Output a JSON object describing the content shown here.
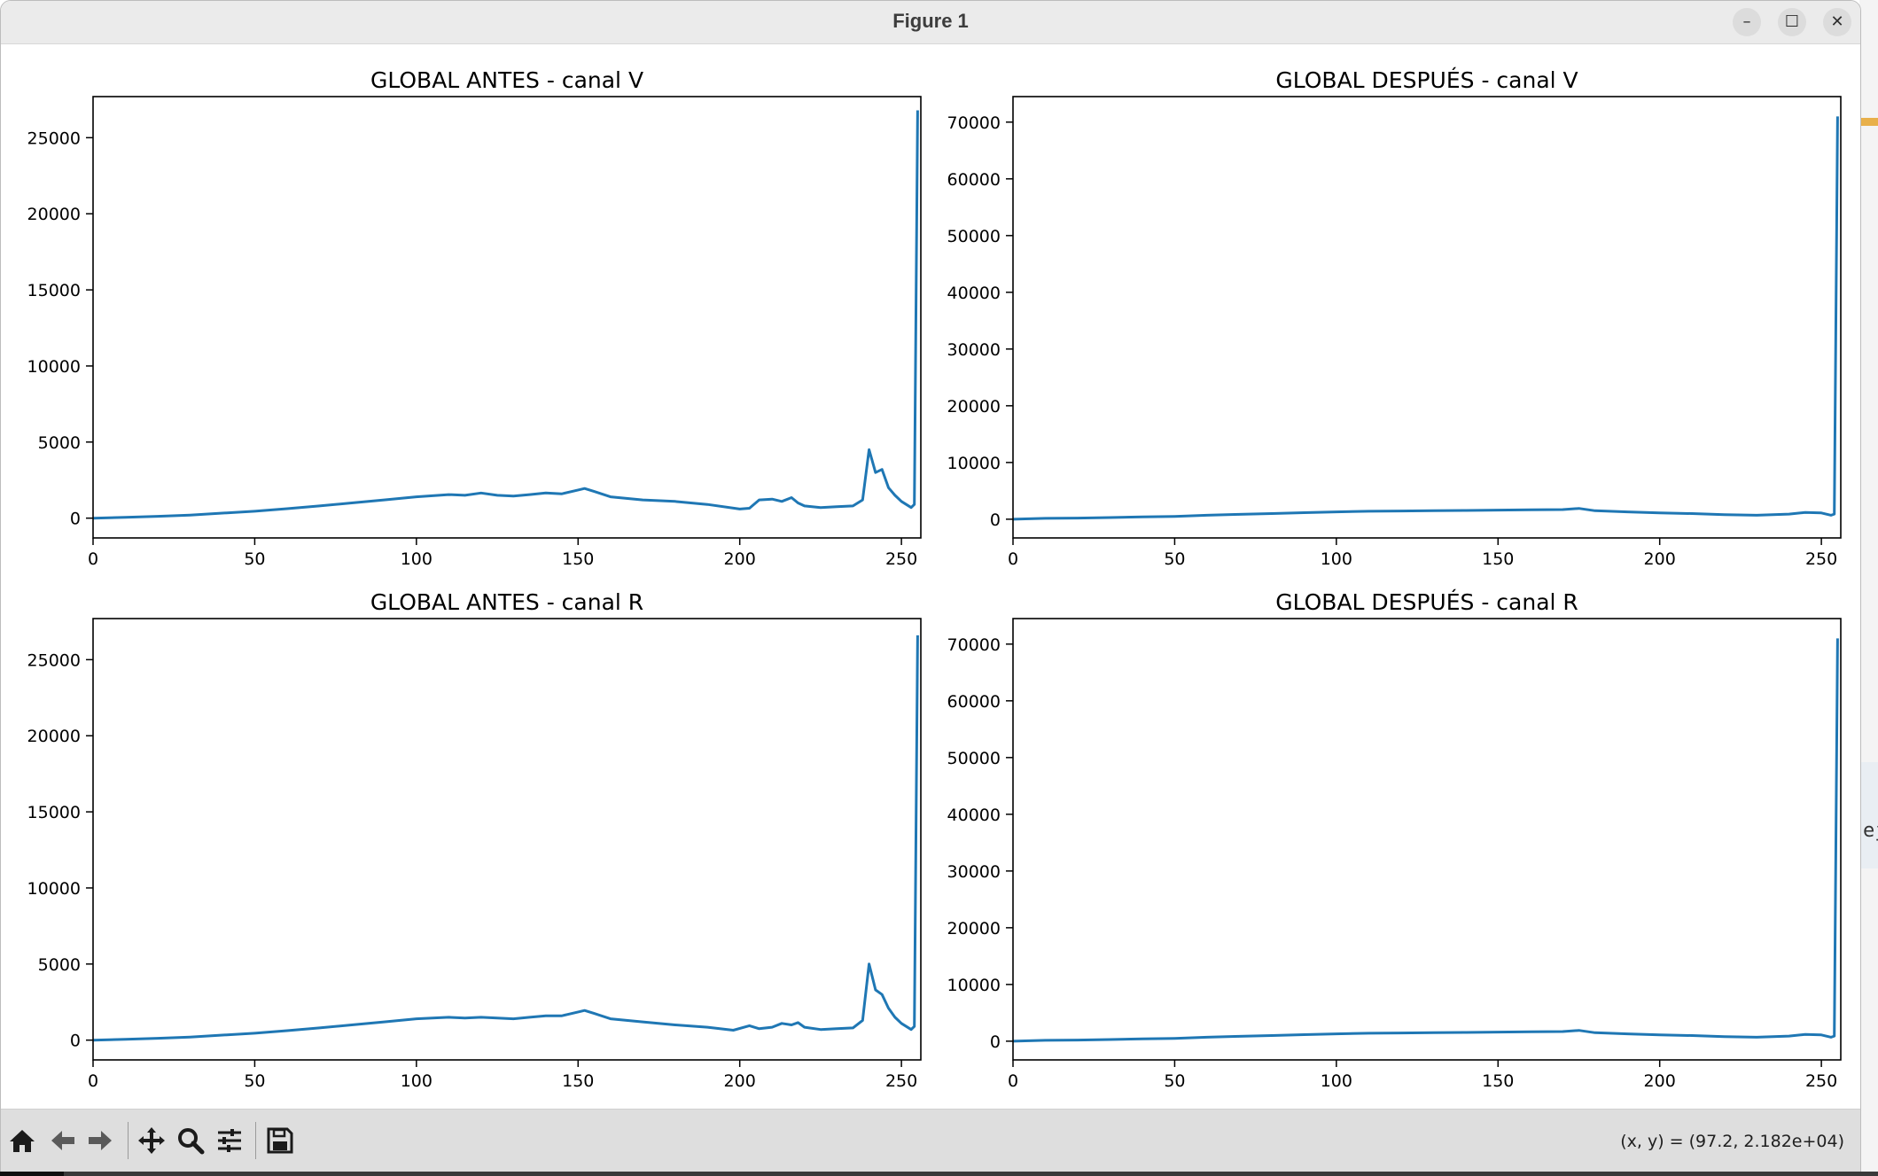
{
  "window": {
    "title": "Figure 1",
    "controls": {
      "minimize": "–",
      "maximize": "☐",
      "close": "✕"
    }
  },
  "toolbar": {
    "icons": [
      "home-icon",
      "back-arrow-icon",
      "forward-arrow-icon",
      "pan-icon",
      "zoom-icon",
      "configure-subplots-icon",
      "save-icon"
    ],
    "coords_label": "(x, y) = (97.2, 2.182e+04)"
  },
  "background_app": {
    "glyph": "ej"
  },
  "colors": {
    "line": "#1f77b4",
    "toolbar": "#dedede",
    "titlebar": "#ebebeb"
  },
  "chart_data": [
    {
      "type": "line",
      "title": "GLOBAL ANTES - canal V",
      "xlabel": "",
      "ylabel": "",
      "xlim": [
        0,
        256
      ],
      "ylim": [
        -1300,
        27700
      ],
      "xticks": [
        0,
        50,
        100,
        150,
        200,
        250
      ],
      "yticks": [
        0,
        5000,
        10000,
        15000,
        20000,
        25000
      ],
      "grid": false,
      "series": [
        {
          "x": [
            0,
            10,
            20,
            30,
            40,
            50,
            60,
            70,
            80,
            90,
            100,
            110,
            115,
            120,
            125,
            130,
            135,
            140,
            145,
            150,
            152,
            155,
            160,
            170,
            180,
            190,
            200,
            203,
            206,
            210,
            213,
            216,
            218,
            220,
            225,
            230,
            235,
            238,
            240,
            242,
            244,
            246,
            248,
            250,
            253,
            254,
            255
          ],
          "y": [
            0,
            50,
            120,
            200,
            330,
            450,
            620,
            800,
            1000,
            1200,
            1400,
            1550,
            1500,
            1650,
            1500,
            1450,
            1550,
            1650,
            1600,
            1850,
            1950,
            1750,
            1400,
            1200,
            1100,
            900,
            600,
            650,
            1200,
            1250,
            1100,
            1350,
            1000,
            800,
            700,
            750,
            800,
            1200,
            4500,
            3000,
            3200,
            2000,
            1500,
            1100,
            700,
            900,
            26800
          ]
        }
      ]
    },
    {
      "type": "line",
      "title": "GLOBAL DESPUÉS - canal V",
      "xlabel": "",
      "ylabel": "",
      "xlim": [
        0,
        256
      ],
      "ylim": [
        -3300,
        74500
      ],
      "xticks": [
        0,
        50,
        100,
        150,
        200,
        250
      ],
      "yticks": [
        0,
        10000,
        20000,
        30000,
        40000,
        50000,
        60000,
        70000
      ],
      "grid": false,
      "series": [
        {
          "x": [
            0,
            10,
            20,
            30,
            40,
            50,
            60,
            70,
            80,
            90,
            100,
            110,
            120,
            130,
            140,
            150,
            160,
            170,
            175,
            180,
            190,
            200,
            210,
            220,
            230,
            240,
            245,
            250,
            253,
            254,
            255
          ],
          "y": [
            0,
            150,
            200,
            300,
            400,
            500,
            700,
            850,
            1000,
            1150,
            1300,
            1400,
            1450,
            1500,
            1550,
            1600,
            1650,
            1700,
            1900,
            1500,
            1300,
            1100,
            1000,
            800,
            700,
            900,
            1200,
            1100,
            700,
            900,
            71000
          ]
        }
      ]
    },
    {
      "type": "line",
      "title": "GLOBAL ANTES - canal R",
      "xlabel": "",
      "ylabel": "",
      "xlim": [
        0,
        256
      ],
      "ylim": [
        -1300,
        27700
      ],
      "xticks": [
        0,
        50,
        100,
        150,
        200,
        250
      ],
      "yticks": [
        0,
        5000,
        10000,
        15000,
        20000,
        25000
      ],
      "grid": false,
      "series": [
        {
          "x": [
            0,
            10,
            20,
            30,
            40,
            50,
            60,
            70,
            80,
            90,
            100,
            110,
            115,
            120,
            125,
            130,
            135,
            140,
            145,
            150,
            152,
            155,
            160,
            170,
            180,
            190,
            198,
            203,
            206,
            210,
            213,
            216,
            218,
            220,
            225,
            230,
            235,
            238,
            240,
            242,
            244,
            246,
            248,
            250,
            253,
            254,
            255
          ],
          "y": [
            0,
            50,
            120,
            200,
            330,
            450,
            620,
            800,
            1000,
            1200,
            1400,
            1500,
            1450,
            1500,
            1450,
            1400,
            1500,
            1600,
            1600,
            1850,
            1950,
            1750,
            1400,
            1200,
            1000,
            850,
            650,
            950,
            750,
            850,
            1100,
            1000,
            1150,
            850,
            700,
            750,
            800,
            1300,
            5000,
            3300,
            3000,
            2100,
            1500,
            1100,
            700,
            900,
            26600
          ]
        }
      ]
    },
    {
      "type": "line",
      "title": "GLOBAL DESPUÉS - canal R",
      "xlabel": "",
      "ylabel": "",
      "xlim": [
        0,
        256
      ],
      "ylim": [
        -3300,
        74500
      ],
      "xticks": [
        0,
        50,
        100,
        150,
        200,
        250
      ],
      "yticks": [
        0,
        10000,
        20000,
        30000,
        40000,
        50000,
        60000,
        70000
      ],
      "grid": false,
      "series": [
        {
          "x": [
            0,
            10,
            20,
            30,
            40,
            50,
            60,
            70,
            80,
            90,
            100,
            110,
            120,
            130,
            140,
            150,
            160,
            170,
            175,
            180,
            190,
            200,
            210,
            220,
            230,
            240,
            245,
            250,
            253,
            254,
            255
          ],
          "y": [
            0,
            150,
            200,
            300,
            400,
            500,
            700,
            850,
            1000,
            1150,
            1300,
            1400,
            1450,
            1500,
            1550,
            1600,
            1650,
            1700,
            1900,
            1500,
            1300,
            1100,
            1000,
            800,
            700,
            900,
            1200,
            1100,
            700,
            900,
            71000
          ]
        }
      ]
    }
  ]
}
